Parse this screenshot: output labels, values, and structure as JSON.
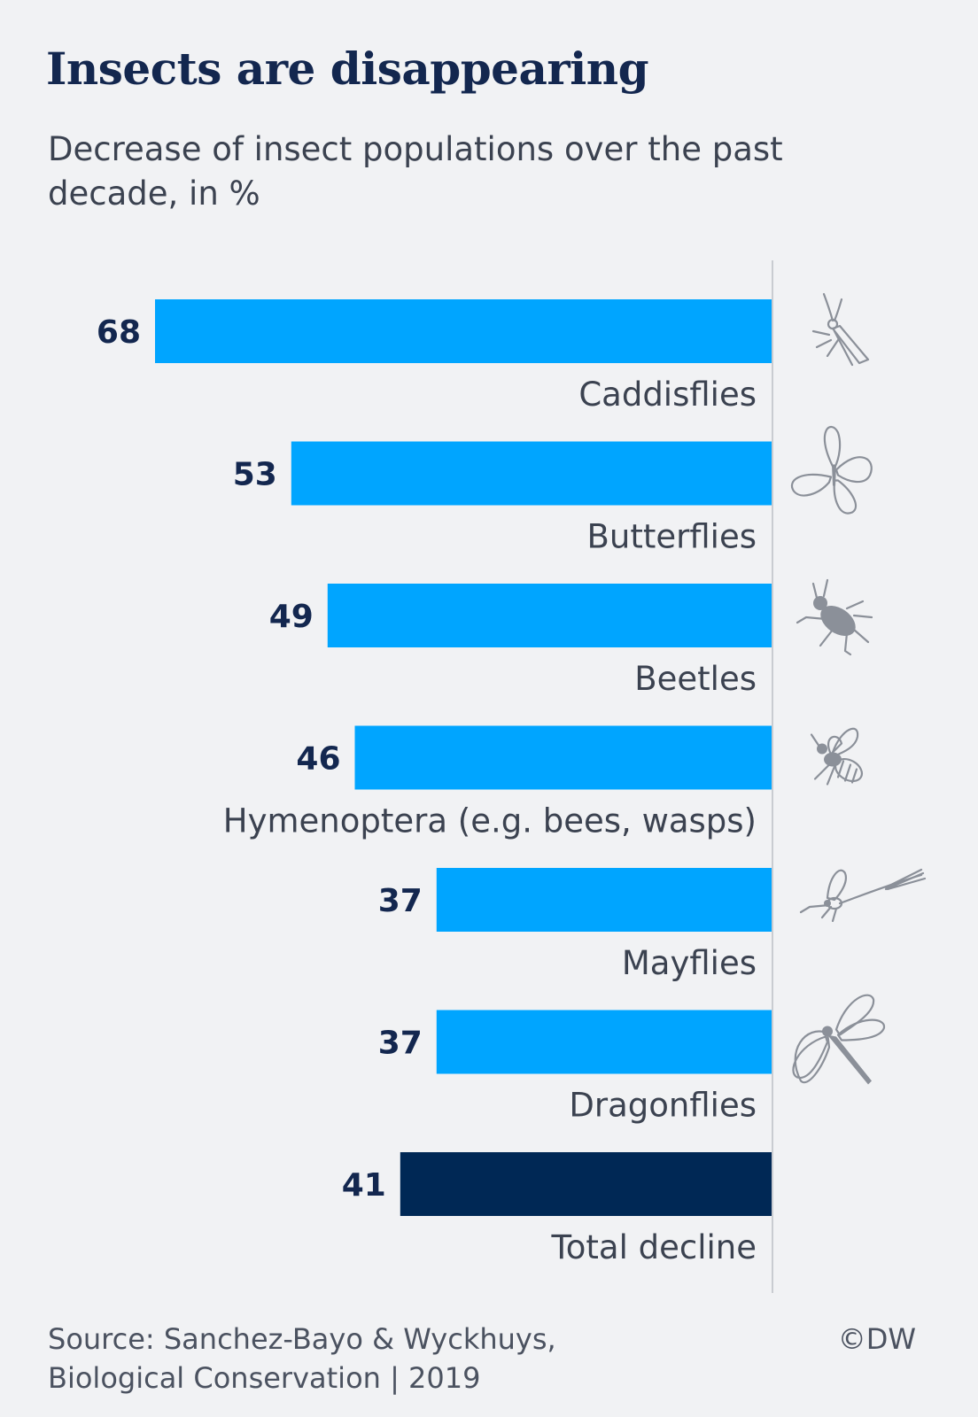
{
  "chart_data": {
    "type": "bar",
    "orientation": "horizontal",
    "title": "Insects are disappearing",
    "subtitle": "Decrease of insect populations over the past decade, in %",
    "categories": [
      "Caddisflies",
      "Butterflies",
      "Beetles",
      "Hymenoptera (e.g. bees, wasps)",
      "Mayflies",
      "Dragonflies",
      "Total decline"
    ],
    "values": [
      68,
      53,
      49,
      46,
      37,
      37,
      41
    ],
    "icons": [
      "caddisfly-icon",
      "butterfly-icon",
      "beetle-icon",
      "bee-icon",
      "mayfly-icon",
      "dragonfly-icon",
      null
    ],
    "colors": [
      "#00a5ff",
      "#00a5ff",
      "#00a5ff",
      "#00a5ff",
      "#00a5ff",
      "#00a5ff",
      "#002855"
    ],
    "baseline_color": "#c9ccd1",
    "bar_direction": "leftward",
    "grid": false,
    "legend": false
  },
  "footer": {
    "source_line1": "Source: Sanchez-Bayo & Wyckhuys,",
    "source_line2": "Biological Conservation | 2019",
    "credit": "©DW"
  }
}
